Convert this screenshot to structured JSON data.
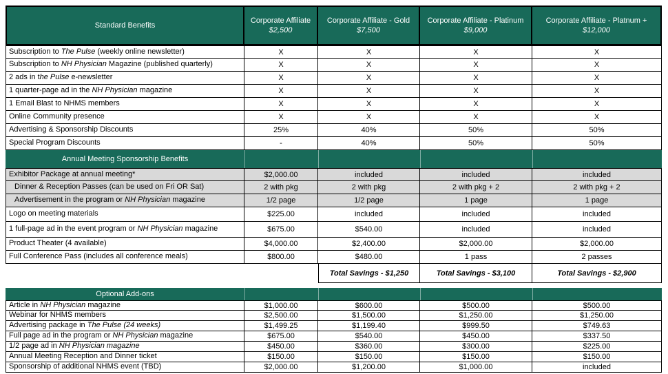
{
  "colors": {
    "header_green": "#186a59",
    "shaded_row": "#d9d9d9",
    "border": "#000000"
  },
  "header": {
    "benefits_label": "Standard Benefits",
    "columns": [
      {
        "name": "Corporate Affiliate",
        "price": "$2,500"
      },
      {
        "name": "Corporate Affiliate - Gold",
        "price": "$7,500"
      },
      {
        "name": "Corporate Affiliate - Platinum",
        "price": "$9,000"
      },
      {
        "name": "Corporate Affiliate - Platnum +",
        "price": "$12,000"
      }
    ]
  },
  "standard_section": {
    "rows": [
      {
        "label": [
          {
            "t": "Subscription to ",
            "i": false
          },
          {
            "t": "The Pulse",
            "i": true
          },
          {
            "t": " (weekly online newsletter)",
            "i": false
          }
        ],
        "values": [
          "X",
          "X",
          "X",
          "X"
        ]
      },
      {
        "label": [
          {
            "t": "Subscription to ",
            "i": false
          },
          {
            "t": "NH Physician",
            "i": true
          },
          {
            "t": " Magazine (published quarterly)",
            "i": false
          }
        ],
        "values": [
          "X",
          "X",
          "X",
          "X"
        ]
      },
      {
        "label": [
          {
            "t": "2 ads in t",
            "i": false
          },
          {
            "t": "he Pulse",
            "i": true
          },
          {
            "t": " e-newsletter",
            "i": false
          }
        ],
        "values": [
          "X",
          "X",
          "X",
          "X"
        ]
      },
      {
        "label": [
          {
            "t": "1 quarter-page ad in the ",
            "i": false
          },
          {
            "t": "NH Physician",
            "i": true
          },
          {
            "t": " magazine",
            "i": false
          }
        ],
        "values": [
          "X",
          "X",
          "X",
          "X"
        ]
      },
      {
        "label": [
          {
            "t": "1 Email Blast to NHMS members",
            "i": false
          }
        ],
        "values": [
          "X",
          "X",
          "X",
          "X"
        ]
      },
      {
        "label": [
          {
            "t": "Online Community presence",
            "i": false
          }
        ],
        "values": [
          "X",
          "X",
          "X",
          "X"
        ]
      },
      {
        "label": [
          {
            "t": "Advertising & Sponsorship Discounts",
            "i": false
          }
        ],
        "values": [
          "25%",
          "40%",
          "50%",
          "50%"
        ]
      },
      {
        "label": [
          {
            "t": "Special Program Discounts",
            "i": false
          }
        ],
        "values": [
          "-",
          "40%",
          "50%",
          "50%"
        ]
      }
    ]
  },
  "annual_section": {
    "title": "Annual Meeting Sponsorship Benefits",
    "rows": [
      {
        "label": [
          {
            "t": "Exhibitor Package at annual meeting*",
            "i": false
          }
        ],
        "values": [
          "$2,000.00",
          "included",
          "included",
          "included"
        ],
        "shaded": true
      },
      {
        "label": [
          {
            "t": "Dinner & Reception Passes (can be used on Fri OR Sat)",
            "i": false
          }
        ],
        "values": [
          "2 with pkg",
          "2 with pkg",
          "2 with pkg + 2",
          "2 with pkg + 2"
        ],
        "shaded": true,
        "indent": true
      },
      {
        "label": [
          {
            "t": "Advertisement in the program or ",
            "i": false
          },
          {
            "t": "NH Physician",
            "i": true
          },
          {
            "t": " magazine",
            "i": false
          }
        ],
        "values": [
          "1/2 page",
          "1/2 page",
          "1 page",
          "1 page"
        ],
        "shaded": true,
        "indent": true
      },
      {
        "label": [
          {
            "t": "Logo on meeting materials",
            "i": false
          }
        ],
        "values": [
          "$225.00",
          "included",
          "included",
          "included"
        ]
      },
      {
        "label": [
          {
            "t": "1 full-page ad in the event program or ",
            "i": false
          },
          {
            "t": "NH Physician",
            "i": true
          },
          {
            "t": " magazine",
            "i": false
          }
        ],
        "values": [
          "$675.00",
          "$540.00",
          "included",
          "included"
        ]
      },
      {
        "label": [
          {
            "t": "Product Theater (4 available)",
            "i": false
          }
        ],
        "values": [
          "$4,000.00",
          "$2,400.00",
          "$2,000.00",
          "$2,000.00"
        ]
      },
      {
        "label": [
          {
            "t": "Full Conference Pass (includes all conference meals)",
            "i": false
          }
        ],
        "values": [
          "$800.00",
          "$480.00",
          "1 pass",
          "2 passes"
        ]
      }
    ]
  },
  "savings_row": {
    "values": [
      "Total Savings - $1,250",
      "Total Savings - $3,100",
      "Total Savings - $2,900"
    ]
  },
  "optional_section": {
    "title": "Optional Add-ons",
    "rows": [
      {
        "label": [
          {
            "t": "Article in ",
            "i": false
          },
          {
            "t": "NH Physician",
            "i": true
          },
          {
            "t": " magazine",
            "i": false
          }
        ],
        "values": [
          "$1,000.00",
          "$600.00",
          "$500.00",
          "$500.00"
        ]
      },
      {
        "label": [
          {
            "t": "Webinar for NHMS members",
            "i": false
          }
        ],
        "values": [
          "$2,500.00",
          "$1,500.00",
          "$1,250.00",
          "$1,250.00"
        ]
      },
      {
        "label": [
          {
            "t": "Advertising package in ",
            "i": false
          },
          {
            "t": "The Pulse (24 weeks)",
            "i": true
          }
        ],
        "values": [
          "$1,499.25",
          "$1,199.40",
          "$999.50",
          "$749.63"
        ]
      },
      {
        "label": [
          {
            "t": "Full page ad in the program or ",
            "i": false
          },
          {
            "t": "NH Physician",
            "i": true
          },
          {
            "t": " magazine",
            "i": false
          }
        ],
        "values": [
          "$675.00",
          "$540.00",
          "$450.00",
          "$337.50"
        ]
      },
      {
        "label": [
          {
            "t": "1/2 page ad in ",
            "i": false
          },
          {
            "t": "NH Physician magazine",
            "i": true
          }
        ],
        "values": [
          "$450.00",
          "$360.00",
          "$300.00",
          "$225.00"
        ]
      },
      {
        "label": [
          {
            "t": "Annual Meeting Reception and Dinner ticket",
            "i": false
          }
        ],
        "values": [
          "$150.00",
          "$150.00",
          "$150.00",
          "$150.00"
        ]
      },
      {
        "label": [
          {
            "t": "Sponsorship of additional NHMS event (TBD)",
            "i": false
          }
        ],
        "values": [
          "$2,000.00",
          "$1,200.00",
          "$1,000.00",
          "included"
        ]
      }
    ]
  }
}
